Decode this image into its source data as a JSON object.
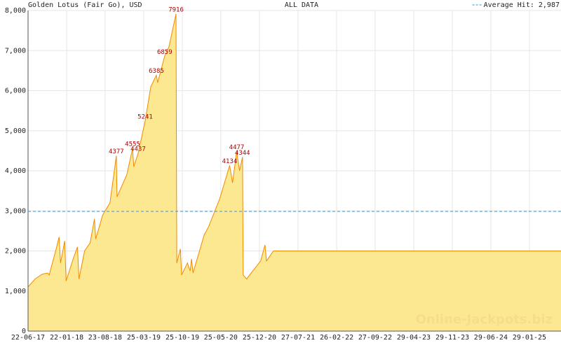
{
  "chart_data": {
    "type": "area",
    "title": "Golden Lotus (Fair Go), USD",
    "subtitle": "ALL DATA",
    "watermark": "Online-Jackpots.biz",
    "x": [
      "22-06-17",
      "31-07-17",
      "08-09-17",
      "09-10-17",
      "17-10-17",
      "25-11-17",
      "11-12-17",
      "19-12-17",
      "11-01-18",
      "19-01-18",
      "27-02-18",
      "23-03-18",
      "31-03-18",
      "01-05-18",
      "01-06-18",
      "25-06-18",
      "02-07-18",
      "10-08-18",
      "19-09-18",
      "24-10-18",
      "28-10-18",
      "21-12-18",
      "22-01-19",
      "29-01-19",
      "22-02-19",
      "02-04-19",
      "03-05-19",
      "03-06-19",
      "10-06-19",
      "19-07-19",
      "12-08-19",
      "20-09-19",
      "24-09-19",
      "14-10-19",
      "21-10-19",
      "22-11-19",
      "07-12-19",
      "15-12-19",
      "23-12-19",
      "23-02-20",
      "18-03-20",
      "19-05-20",
      "13-07-20",
      "29-07-20",
      "21-08-20",
      "06-09-20",
      "22-09-20",
      "26-09-20",
      "15-10-20",
      "23-10-20",
      "01-01-21",
      "25-01-21",
      "02-02-21",
      "13-03-21",
      "23-07-25"
    ],
    "values": [
      1100,
      1300,
      1420,
      1450,
      1400,
      2050,
      2350,
      1700,
      2250,
      1250,
      1800,
      2100,
      1300,
      2000,
      2200,
      2800,
      2300,
      2900,
      3200,
      4377,
      3350,
      3900,
      4555,
      4100,
      4437,
      5241,
      6100,
      6385,
      6200,
      6859,
      7100,
      7916,
      1700,
      2050,
      1400,
      1700,
      1500,
      1800,
      1450,
      2400,
      2600,
      3300,
      4134,
      3700,
      4477,
      4000,
      4344,
      1400,
      1300,
      1350,
      1750,
      2150,
      1750,
      2000,
      2000
    ],
    "value_labels": [
      null,
      null,
      null,
      null,
      null,
      null,
      null,
      null,
      null,
      null,
      null,
      null,
      null,
      null,
      null,
      null,
      null,
      null,
      null,
      "4377",
      null,
      null,
      "4555",
      null,
      "4437",
      "5241",
      null,
      "6385",
      null,
      "6859",
      null,
      "7916",
      null,
      null,
      null,
      null,
      null,
      null,
      null,
      null,
      null,
      null,
      "4134",
      null,
      "4477",
      null,
      "4344",
      null,
      null,
      null,
      null,
      null,
      null,
      null,
      null
    ],
    "color": "#f08a00",
    "fill": "#fde892",
    "label_color": "#aa0000",
    "xlim": [
      "22-06-17",
      "23-07-25"
    ],
    "xticks": [
      "22-06-17",
      "22-01-18",
      "23-08-18",
      "25-03-19",
      "25-10-19",
      "25-05-20",
      "25-12-20",
      "27-07-21",
      "26-02-22",
      "27-09-22",
      "29-04-23",
      "29-11-23",
      "29-06-24",
      "29-01-25"
    ],
    "ylim": [
      0,
      8000
    ],
    "yticks": [
      0,
      {
        "value": 1000,
        "label": "1,000"
      },
      {
        "value": 2000,
        "label": "2,000"
      },
      {
        "value": 3000,
        "label": "3,000"
      },
      {
        "value": 4000,
        "label": "4,000"
      },
      {
        "value": 5000,
        "label": "5,000"
      },
      {
        "value": 6000,
        "label": "6,000"
      },
      {
        "value": 7000,
        "label": "7,000"
      },
      {
        "value": 8000,
        "label": "8,000"
      }
    ],
    "grid": true,
    "average": {
      "label": "Average Hit: 2,987",
      "value": 2987,
      "color": "#3399dd"
    },
    "legend": "top-right"
  }
}
